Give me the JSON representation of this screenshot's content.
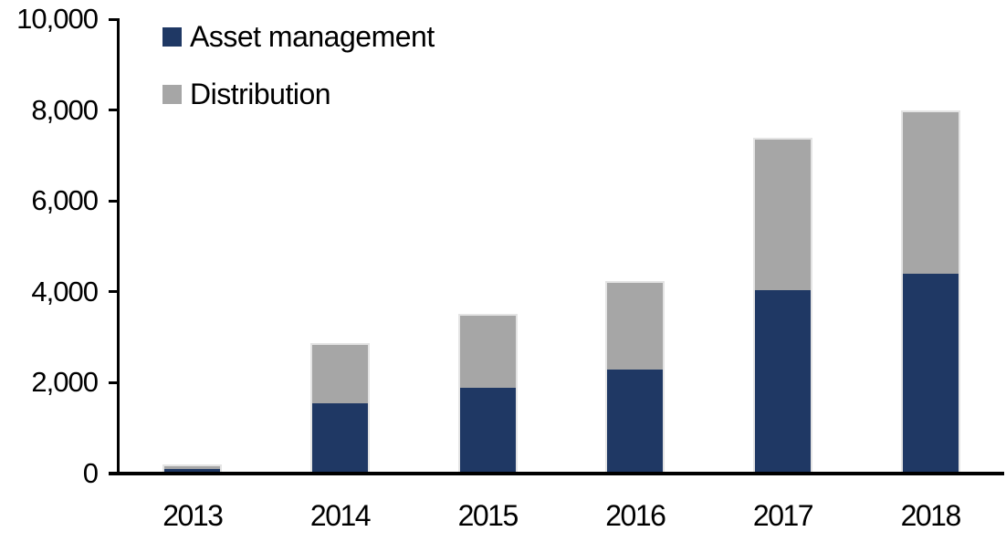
{
  "chart_data": {
    "type": "bar",
    "stacked": true,
    "title": "",
    "xlabel": "",
    "ylabel": "",
    "categories": [
      "2013",
      "2014",
      "2015",
      "2016",
      "2017",
      "2018"
    ],
    "series": [
      {
        "name": "Asset management",
        "color": "#1F3864",
        "values": [
          100,
          1530,
          1880,
          2290,
          4030,
          4400
        ]
      },
      {
        "name": "Distribution",
        "color": "#A6A6A6",
        "values": [
          90,
          1340,
          1620,
          1950,
          3350,
          3600
        ]
      }
    ],
    "totals": [
      190,
      2870,
      3500,
      4240,
      7380,
      8000
    ],
    "ylim": [
      0,
      10000
    ],
    "ytick_interval": 2000,
    "yticks": [
      0,
      2000,
      4000,
      6000,
      8000,
      10000
    ],
    "ytick_labels": [
      "0",
      "2,000",
      "4,000",
      "6,000",
      "8,000",
      "10,000"
    ],
    "legend_position": "top-left-inside",
    "grid": false,
    "axis_color": "#000000",
    "bar_edge_color": "#E4E4E4"
  }
}
